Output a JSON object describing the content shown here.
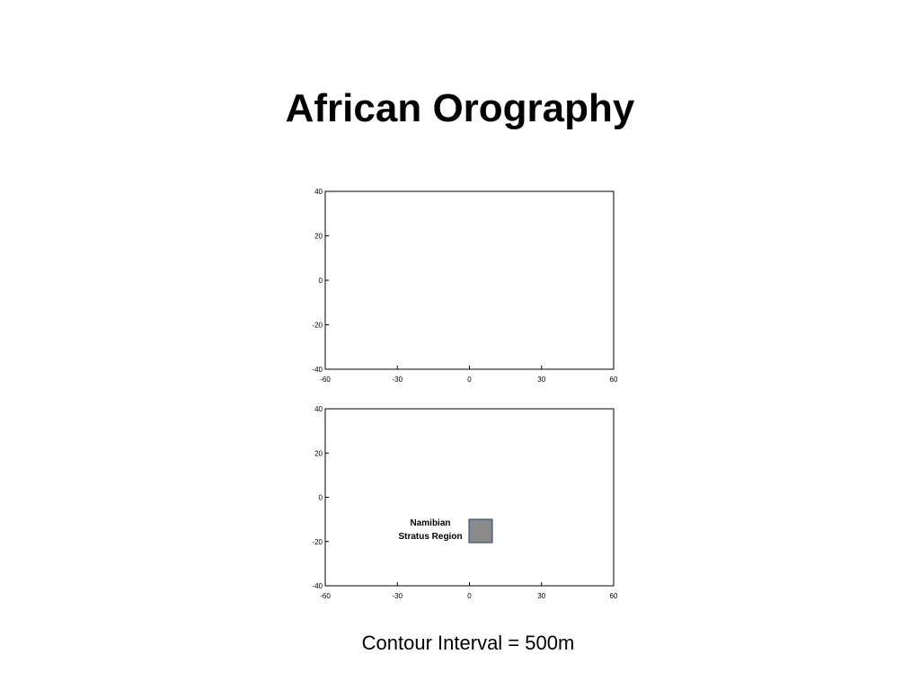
{
  "title": "African Orography",
  "maps": [
    {
      "xticks": [
        -60,
        -30,
        0,
        30,
        60
      ],
      "yticks": [
        40,
        20,
        0,
        -20,
        -40
      ]
    },
    {
      "xticks": [
        -60,
        -30,
        0,
        30,
        60
      ],
      "yticks": [
        40,
        20,
        0,
        -20,
        -40
      ],
      "annotation": [
        "Namibian",
        "Stratus Region"
      ]
    }
  ],
  "caption": "Contour Interval = 500m"
}
